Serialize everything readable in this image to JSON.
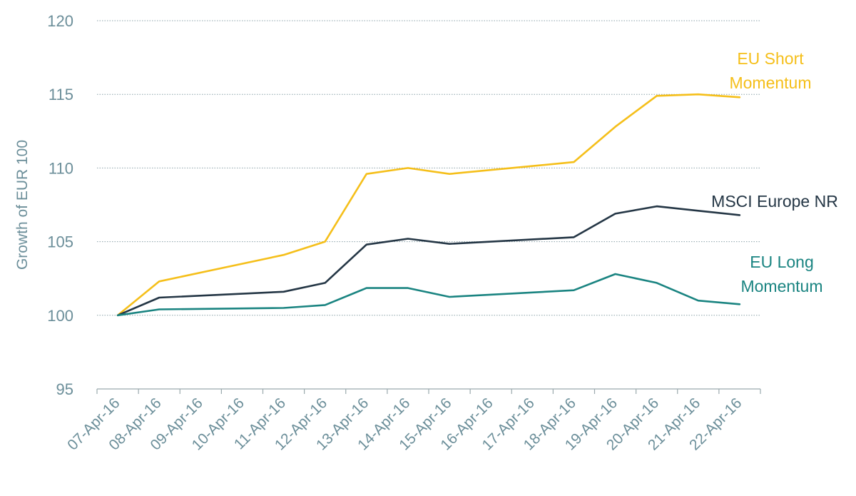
{
  "chart_data": {
    "type": "line",
    "ylabel": "Growth of EUR 100",
    "ylim": [
      95,
      120
    ],
    "yticks": [
      "95",
      "100",
      "105",
      "110",
      "115",
      "120"
    ],
    "grid": true,
    "x": [
      "07-Apr-16",
      "08-Apr-16",
      "09-Apr-16",
      "10-Apr-16",
      "11-Apr-16",
      "12-Apr-16",
      "13-Apr-16",
      "14-Apr-16",
      "15-Apr-16",
      "16-Apr-16",
      "17-Apr-16",
      "18-Apr-16",
      "19-Apr-16",
      "20-Apr-16",
      "21-Apr-16",
      "22-Apr-16"
    ],
    "series": [
      {
        "name": "EU Short Momentum",
        "label_lines": [
          "EU Short",
          "Momentum"
        ],
        "color": "#f5bf1a",
        "points": [
          {
            "x": "07-Apr-16",
            "y": 100.0
          },
          {
            "x": "08-Apr-16",
            "y": 102.3
          },
          {
            "x": "11-Apr-16",
            "y": 104.1
          },
          {
            "x": "12-Apr-16",
            "y": 105.0
          },
          {
            "x": "13-Apr-16",
            "y": 109.6
          },
          {
            "x": "14-Apr-16",
            "y": 110.0
          },
          {
            "x": "15-Apr-16",
            "y": 109.6
          },
          {
            "x": "18-Apr-16",
            "y": 110.4
          },
          {
            "x": "19-Apr-16",
            "y": 112.8
          },
          {
            "x": "20-Apr-16",
            "y": 114.9
          },
          {
            "x": "21-Apr-16",
            "y": 115.0
          },
          {
            "x": "22-Apr-16",
            "y": 114.8
          }
        ]
      },
      {
        "name": "MSCI Europe NR",
        "label_lines": [
          "MSCI Europe NR"
        ],
        "color": "#243645",
        "points": [
          {
            "x": "07-Apr-16",
            "y": 100.0
          },
          {
            "x": "08-Apr-16",
            "y": 101.2
          },
          {
            "x": "11-Apr-16",
            "y": 101.6
          },
          {
            "x": "12-Apr-16",
            "y": 102.2
          },
          {
            "x": "13-Apr-16",
            "y": 104.8
          },
          {
            "x": "14-Apr-16",
            "y": 105.2
          },
          {
            "x": "15-Apr-16",
            "y": 104.85
          },
          {
            "x": "18-Apr-16",
            "y": 105.3
          },
          {
            "x": "19-Apr-16",
            "y": 106.9
          },
          {
            "x": "20-Apr-16",
            "y": 107.4
          },
          {
            "x": "21-Apr-16",
            "y": 107.1
          },
          {
            "x": "22-Apr-16",
            "y": 106.8
          }
        ]
      },
      {
        "name": "EU Long Momentum",
        "label_lines": [
          "EU Long",
          "Momentum"
        ],
        "color": "#1a8481",
        "points": [
          {
            "x": "07-Apr-16",
            "y": 100.0
          },
          {
            "x": "08-Apr-16",
            "y": 100.4
          },
          {
            "x": "11-Apr-16",
            "y": 100.5
          },
          {
            "x": "12-Apr-16",
            "y": 100.7
          },
          {
            "x": "13-Apr-16",
            "y": 101.85
          },
          {
            "x": "14-Apr-16",
            "y": 101.85
          },
          {
            "x": "15-Apr-16",
            "y": 101.25
          },
          {
            "x": "18-Apr-16",
            "y": 101.7
          },
          {
            "x": "19-Apr-16",
            "y": 102.8
          },
          {
            "x": "20-Apr-16",
            "y": 102.2
          },
          {
            "x": "21-Apr-16",
            "y": 101.0
          },
          {
            "x": "22-Apr-16",
            "y": 100.75
          }
        ]
      }
    ]
  }
}
